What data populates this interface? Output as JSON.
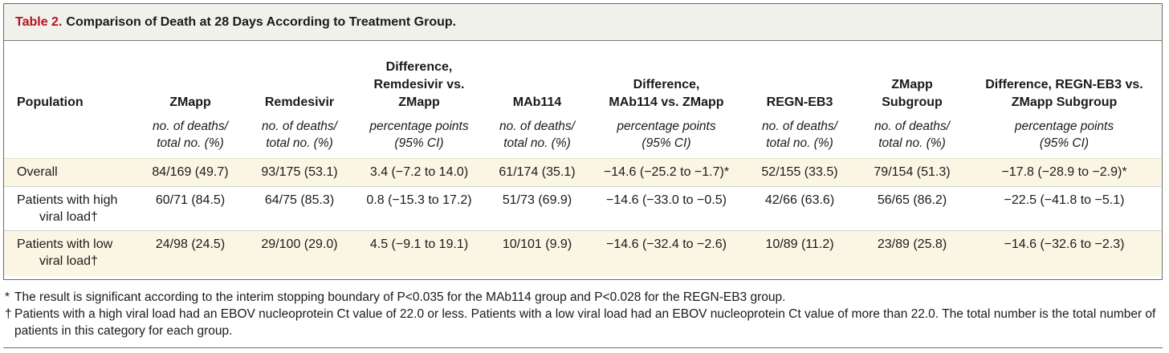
{
  "table": {
    "label": "Table 2.",
    "title": "Comparison of Death at 28 Days According to Treatment Group.",
    "headers": [
      [
        "Population"
      ],
      [
        "ZMapp"
      ],
      [
        "Remdesivir"
      ],
      [
        "Difference,",
        "Remdesivir vs.",
        "ZMapp"
      ],
      [
        "MAb114"
      ],
      [
        "Difference,",
        "MAb114 vs. ZMapp"
      ],
      [
        "REGN-EB3"
      ],
      [
        "ZMapp",
        "Subgroup"
      ],
      [
        "Difference, REGN-EB3 vs.",
        "ZMapp Subgroup"
      ]
    ],
    "units": [
      [
        "",
        ""
      ],
      [
        "no. of deaths/",
        "total no. (%)"
      ],
      [
        "no. of deaths/",
        "total no. (%)"
      ],
      [
        "percentage points",
        "(95% CI)"
      ],
      [
        "no. of deaths/",
        "total no. (%)"
      ],
      [
        "percentage points",
        "(95% CI)"
      ],
      [
        "no. of deaths/",
        "total no. (%)"
      ],
      [
        "no. of deaths/",
        "total no. (%)"
      ],
      [
        "percentage points",
        "(95% CI)"
      ]
    ],
    "rows": [
      {
        "population": [
          "Overall",
          ""
        ],
        "cells": [
          "84/169 (49.7)",
          "93/175 (53.1)",
          "3.4 (−7.2 to 14.0)",
          "61/174 (35.1)",
          "−14.6 (−25.2 to −1.7)*",
          "52/155 (33.5)",
          "79/154 (51.3)",
          "−17.8 (−28.9 to −2.9)*"
        ]
      },
      {
        "population": [
          "Patients with high",
          "viral load†"
        ],
        "cells": [
          "60/71 (84.5)",
          "64/75 (85.3)",
          "0.8 (−15.3 to 17.2)",
          "51/73 (69.9)",
          "−14.6 (−33.0 to −0.5)",
          "42/66 (63.6)",
          "56/65 (86.2)",
          "−22.5 (−41.8 to −5.1)"
        ]
      },
      {
        "population": [
          "Patients with low",
          "viral load†"
        ],
        "cells": [
          "24/98 (24.5)",
          "29/100 (29.0)",
          "4.5 (−9.1 to 19.1)",
          "10/101 (9.9)",
          "−14.6 (−32.4 to −2.6)",
          "10/89 (11.2)",
          "23/89 (25.8)",
          "−14.6 (−32.6 to −2.3)"
        ]
      }
    ]
  },
  "footnotes": [
    {
      "mark": "*",
      "text": "The result is significant according to the interim stopping boundary of P<0.035 for the MAb114 group and P<0.028 for the REGN-EB3 group."
    },
    {
      "mark": "†",
      "text": "Patients with a high viral load had an EBOV nucleoprotein Ct value of 22.0 or less. Patients with a low viral load had an EBOV nucleoprotein Ct value of more than 22.0. The total number is the total number of patients in this category for each group."
    }
  ]
}
